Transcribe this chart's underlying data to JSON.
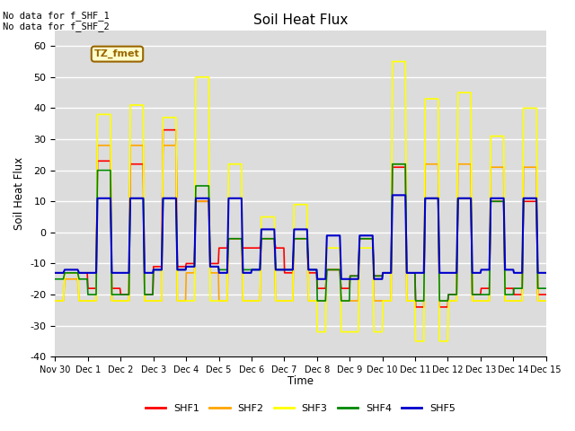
{
  "title": "Soil Heat Flux",
  "ylabel": "Soil Heat Flux",
  "xlabel": "Time",
  "xlim": [
    0,
    15
  ],
  "ylim": [
    -40,
    65
  ],
  "yticks": [
    -40,
    -30,
    -20,
    -10,
    0,
    10,
    20,
    30,
    40,
    50,
    60
  ],
  "xtick_labels": [
    "Nov 30",
    "Dec 1",
    "Dec 2",
    "Dec 3",
    "Dec 4",
    "Dec 5",
    "Dec 6",
    "Dec 7",
    "Dec 8",
    "Dec 9",
    "Dec 10",
    "Dec 11",
    "Dec 12",
    "Dec 13",
    "Dec 14",
    "Dec 15"
  ],
  "colors": {
    "SHF1": "#ff0000",
    "SHF2": "#ffa500",
    "SHF3": "#ffff00",
    "SHF4": "#008800",
    "SHF5": "#0000cc"
  },
  "bg_color": "#dcdcdc",
  "annotation_text": "No data for f_SHF_1\nNo data for f_SHF_2",
  "box_label": "TZ_fmet",
  "box_color": "#ffffcc",
  "box_border": "#996600"
}
